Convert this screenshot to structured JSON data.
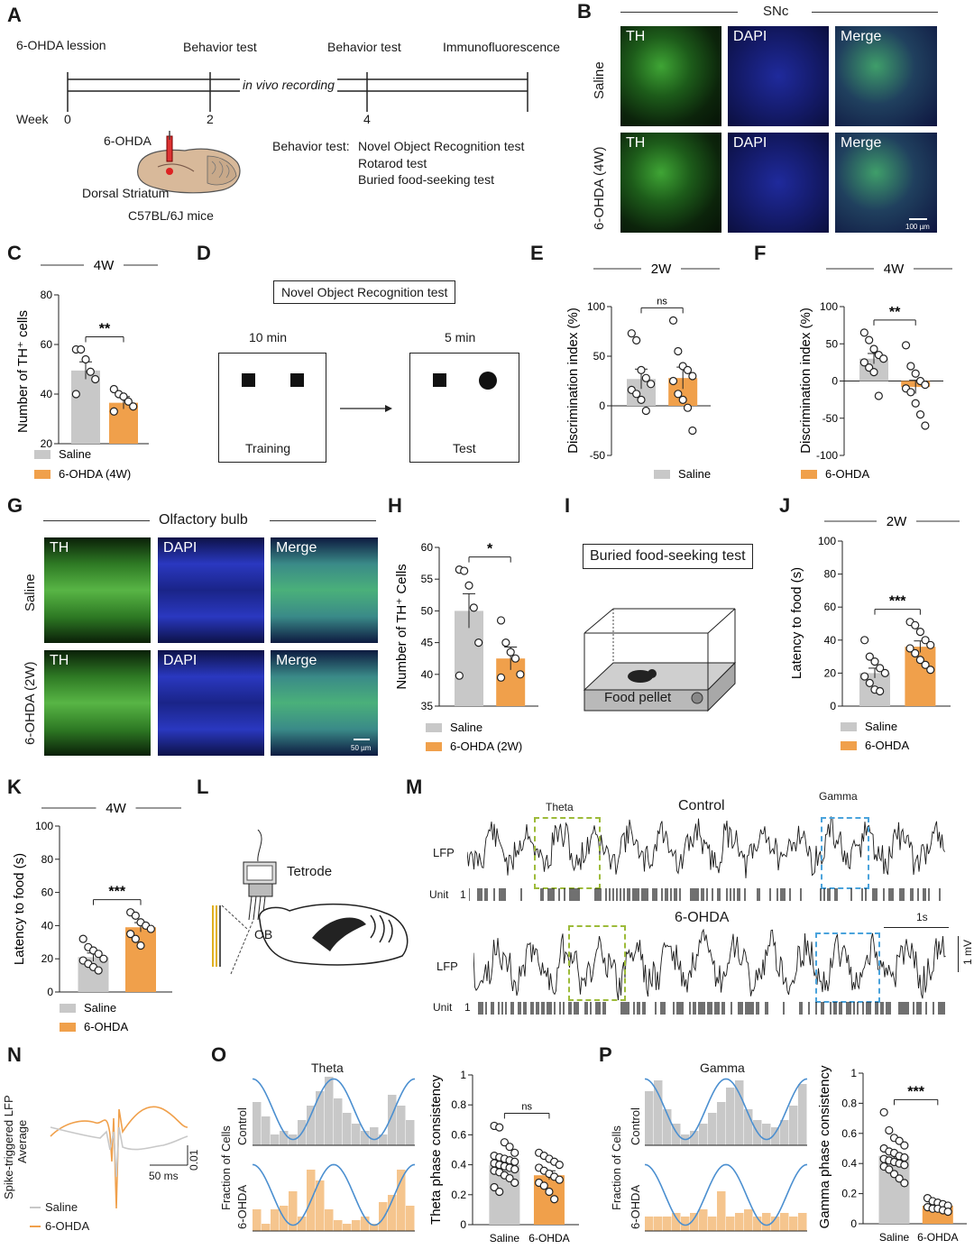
{
  "panels": {
    "A": "A",
    "B": "B",
    "C": "C",
    "D": "D",
    "E": "E",
    "F": "F",
    "G": "G",
    "H": "H",
    "I": "I",
    "J": "J",
    "K": "K",
    "L": "L",
    "M": "M",
    "N": "N",
    "O": "O",
    "P": "P"
  },
  "a": {
    "lesion": "6-OHDA lession",
    "beh1": "Behavior test",
    "beh2": "Behavior test",
    "if": "Immunofluorescence",
    "recording": "in vivo recording",
    "week": "Week",
    "w0": "0",
    "w2": "2",
    "w4": "4",
    "ohda": "6-OHDA",
    "striatum": "Dorsal Striatum",
    "mice": "C57BL/6J mice",
    "bt_label": "Behavior test:",
    "bt1": "Novel Object Recognition test",
    "bt2": "Rotarod test",
    "bt3": "Buried food-seeking test"
  },
  "b": {
    "title": "SNc",
    "row1": "Saline",
    "row2": "6-OHDA (4W)",
    "th": "TH",
    "dapi": "DAPI",
    "merge": "Merge",
    "scale": "100 µm"
  },
  "d": {
    "title": "Novel Object Recognition test",
    "t1": "10 min",
    "t2": "5 min",
    "training": "Training",
    "test": "Test"
  },
  "g": {
    "title": "Olfactory bulb",
    "row1": "Saline",
    "row2": "6-OHDA (2W)",
    "th": "TH",
    "dapi": "DAPI",
    "merge": "Merge",
    "scale": "50 µm"
  },
  "i": {
    "title": "Buried food-seeking test",
    "pellet": "Food pellet"
  },
  "l": {
    "tetrode": "Tetrode",
    "ob": "OB"
  },
  "m": {
    "control": "Control",
    "ohda": "6-OHDA",
    "theta": "Theta",
    "gamma": "Gamma",
    "lfp": "LFP",
    "unit": "Unit",
    "one": "1",
    "scale_t": "1s",
    "scale_v": "1 mV"
  },
  "n": {
    "ylabel1": "Spike-triggered LFP",
    "ylabel2": "Average",
    "scale_t": "50 ms",
    "scale_v": "0.01",
    "leg1": "Saline",
    "leg2": "6-OHDA"
  },
  "o": {
    "title": "Theta",
    "ylabel": "Fraction of Cells",
    "control": "Control",
    "ohda": "6-OHDA"
  },
  "p": {
    "title": "Gamma",
    "ylabel": "Fraction of Cells",
    "control": "Control",
    "ohda": "6-OHDA"
  },
  "colors": {
    "saline": "#c8c8c8",
    "ohda": "#f0a04b",
    "sine": "#4b8fd0",
    "theta_box": "#9dbb3a",
    "gamma_box": "#4aa3dc"
  },
  "chart_data": [
    {
      "id": "C",
      "type": "bar",
      "title": "4W",
      "ylabel": "Number of TH⁺ cells",
      "ylim": [
        20,
        80
      ],
      "yticks": [
        20,
        40,
        60,
        80
      ],
      "categories": [
        "Saline",
        "6-OHDA (4W)"
      ],
      "values": [
        49.5,
        36.5
      ],
      "sem": [
        3.5,
        2.5
      ],
      "points": [
        [
          58,
          58,
          54,
          49,
          46,
          40
        ],
        [
          42,
          40,
          39,
          37,
          35,
          33
        ]
      ],
      "sig": "**",
      "legend": [
        "Saline",
        "6-OHDA (4W)"
      ]
    },
    {
      "id": "E",
      "type": "bar",
      "title": "2W",
      "ylabel": "Discrimination index (%)",
      "ylim": [
        -50,
        100
      ],
      "yticks": [
        -50,
        0,
        50,
        100
      ],
      "categories": [
        "Saline",
        "6-OHDA"
      ],
      "values": [
        27,
        28
      ],
      "sem": [
        10,
        11
      ],
      "points": [
        [
          73,
          66,
          36,
          28,
          22,
          16,
          12,
          6,
          -5
        ],
        [
          86,
          55,
          40,
          36,
          30,
          25,
          12,
          6,
          -2,
          -25
        ]
      ],
      "sig": "ns",
      "legend": [
        "Saline"
      ]
    },
    {
      "id": "F",
      "type": "bar",
      "title": "4W",
      "ylabel": "Discrimination index (%)",
      "ylim": [
        -100,
        100
      ],
      "yticks": [
        -100,
        -50,
        0,
        50,
        100
      ],
      "categories": [
        "Saline",
        "6-OHDA"
      ],
      "values": [
        30,
        -8
      ],
      "sem": [
        7,
        9
      ],
      "points": [
        [
          65,
          55,
          43,
          35,
          30,
          25,
          18,
          12,
          -20
        ],
        [
          48,
          20,
          10,
          0,
          -5,
          -10,
          -15,
          -30,
          -45,
          -60
        ]
      ],
      "sig": "**",
      "legend": [
        "6-OHDA"
      ]
    },
    {
      "id": "H",
      "type": "bar",
      "ylabel": "Number of TH⁺ Cells",
      "ylim": [
        35,
        60
      ],
      "yticks": [
        35,
        40,
        45,
        50,
        55,
        60
      ],
      "categories": [
        "Saline",
        "6-OHDA (2W)"
      ],
      "values": [
        50,
        42.5
      ],
      "sem": [
        2.7,
        1.8
      ],
      "points": [
        [
          56.5,
          56.3,
          54,
          50.5,
          45,
          39.8
        ],
        [
          48.5,
          45,
          43.5,
          42.5,
          40,
          39.5
        ]
      ],
      "sig": "*",
      "legend": [
        "Saline",
        "6-OHDA (2W)"
      ]
    },
    {
      "id": "J",
      "type": "bar",
      "title": "2W",
      "ylabel": "Latency to food (s)",
      "ylim": [
        0,
        100
      ],
      "yticks": [
        0,
        20,
        40,
        60,
        80,
        100
      ],
      "categories": [
        "Saline",
        "6-OHDA"
      ],
      "values": [
        20,
        36
      ],
      "sem": [
        3,
        3.5
      ],
      "points": [
        [
          40,
          30,
          27,
          23,
          20,
          18,
          14,
          10,
          9
        ],
        [
          51,
          49,
          45,
          40,
          37,
          35,
          32,
          28,
          25,
          22
        ]
      ],
      "sig": "***",
      "legend": [
        "Saline",
        "6-OHDA"
      ]
    },
    {
      "id": "K",
      "type": "bar",
      "title": "4W",
      "ylabel": "Latency to food (s)",
      "ylim": [
        0,
        100
      ],
      "yticks": [
        0,
        20,
        40,
        60,
        80,
        100
      ],
      "categories": [
        "Saline",
        "6-OHDA"
      ],
      "values": [
        21,
        39
      ],
      "sem": [
        2.5,
        2.8
      ],
      "points": [
        [
          32,
          27,
          25,
          23,
          20,
          19,
          17,
          15,
          13
        ],
        [
          48,
          46,
          42,
          40,
          38,
          35,
          32,
          28
        ]
      ],
      "sig": "***",
      "legend": [
        "Saline",
        "6-OHDA"
      ]
    },
    {
      "id": "O",
      "type": "bar",
      "ylabel": "Theta phase consistency",
      "ylim": [
        0,
        1
      ],
      "yticks": [
        0,
        0.2,
        0.4,
        0.6,
        0.8,
        1.0
      ],
      "categories": [
        "Saline",
        "6-OHDA"
      ],
      "values": [
        0.4,
        0.33
      ],
      "sem": [
        0.03,
        0.03
      ],
      "points": [
        [
          0.66,
          0.65,
          0.55,
          0.52,
          0.48,
          0.46,
          0.45,
          0.44,
          0.43,
          0.42,
          0.41,
          0.4,
          0.39,
          0.38,
          0.37,
          0.36,
          0.35,
          0.33,
          0.31,
          0.28,
          0.25,
          0.22
        ],
        [
          0.48,
          0.46,
          0.44,
          0.42,
          0.4,
          0.38,
          0.36,
          0.34,
          0.32,
          0.3,
          0.28,
          0.26,
          0.22,
          0.17
        ]
      ],
      "sig": "ns"
    },
    {
      "id": "P",
      "type": "bar",
      "ylabel": "Gamma phase consistency",
      "ylim": [
        0,
        1
      ],
      "yticks": [
        0,
        0.2,
        0.4,
        0.6,
        0.8,
        1.0
      ],
      "categories": [
        "Saline",
        "6-OHDA"
      ],
      "values": [
        0.45,
        0.12
      ],
      "sem": [
        0.02,
        0.01
      ],
      "points": [
        [
          0.74,
          0.62,
          0.57,
          0.55,
          0.52,
          0.5,
          0.48,
          0.47,
          0.45,
          0.44,
          0.43,
          0.42,
          0.41,
          0.4,
          0.39,
          0.38,
          0.36,
          0.33,
          0.3,
          0.27
        ],
        [
          0.17,
          0.15,
          0.14,
          0.13,
          0.12,
          0.11,
          0.1,
          0.1,
          0.09,
          0.08
        ]
      ],
      "sig": "***"
    },
    {
      "id": "O_hist",
      "type": "bar",
      "panel": "O",
      "rows": [
        "Control",
        "6-OHDA"
      ],
      "bins_control": [
        0.6,
        0.4,
        0.15,
        0.2,
        0.15,
        0.35,
        0.55,
        0.75,
        0.95,
        0.65,
        0.45,
        0.3,
        0.2,
        0.25,
        0.15,
        0.7,
        0.55,
        0.35
      ],
      "bins_ohda": [
        0.3,
        0.1,
        0.3,
        0.35,
        0.55,
        0.2,
        0.85,
        0.7,
        0.3,
        0.15,
        0.1,
        0.15,
        0.2,
        0.1,
        0.4,
        0.5,
        0.85,
        0.35
      ]
    },
    {
      "id": "P_hist",
      "type": "bar",
      "panel": "P",
      "rows": [
        "Control",
        "6-OHDA"
      ],
      "bins_control": [
        0.75,
        0.9,
        0.5,
        0.3,
        0.15,
        0.2,
        0.3,
        0.45,
        0.6,
        0.8,
        0.9,
        0.5,
        0.35,
        0.3,
        0.25,
        0.35,
        0.55,
        0.85
      ],
      "bins_ohda": [
        0.2,
        0.2,
        0.2,
        0.25,
        0.2,
        0.25,
        0.3,
        0.2,
        0.55,
        0.2,
        0.25,
        0.3,
        0.2,
        0.25,
        0.2,
        0.25,
        0.2,
        0.25
      ]
    }
  ]
}
